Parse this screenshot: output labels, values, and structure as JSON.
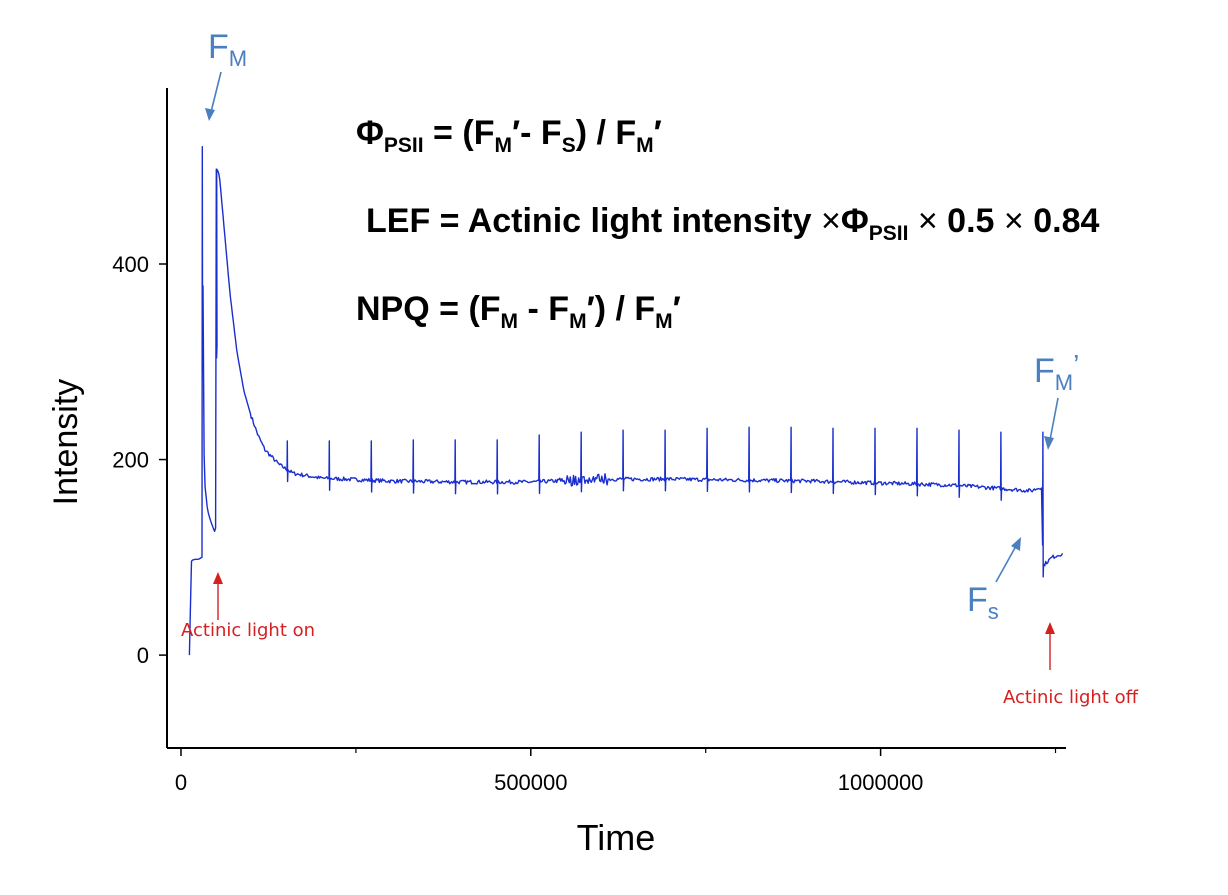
{
  "chart_data": {
    "type": "line",
    "title": "",
    "xlabel": "Time",
    "ylabel": "Intensity",
    "xlim": [
      -20000,
      1265000
    ],
    "ylim": [
      -95,
      580
    ],
    "xticks": [
      0,
      500000,
      1000000
    ],
    "xtick_labels": [
      "0",
      "500000",
      "1000000"
    ],
    "yticks": [
      0,
      200,
      400
    ],
    "ytick_labels": [
      "0",
      "200",
      "400"
    ],
    "line_color": "#1a2ed0",
    "series": [
      {
        "name": "Intensity",
        "x": [
          12000,
          13000,
          14000,
          16000,
          20000,
          25000,
          30000,
          31000,
          32000,
          34000,
          38000,
          42000,
          46000,
          49000,
          50000,
          51000,
          53000,
          55000,
          60000,
          70000,
          80000,
          90000,
          100000,
          110000,
          120000,
          140000,
          160000,
          200000,
          300000,
          400000,
          500000,
          600000,
          700000,
          800000,
          900000,
          1000000,
          1100000,
          1180000,
          1215000,
          1230000,
          1232000,
          1236000,
          1245000,
          1260000
        ],
        "y": [
          0,
          0,
          95,
          97,
          98,
          98,
          100,
          520,
          235,
          175,
          148,
          138,
          130,
          125,
          135,
          497,
          495,
          490,
          450,
          370,
          310,
          270,
          245,
          225,
          210,
          195,
          186,
          181,
          178,
          177,
          177,
          180,
          180,
          179,
          178,
          176,
          174,
          170,
          168,
          172,
          92,
          94,
          100,
          104
        ]
      }
    ],
    "saturating_pulses": {
      "x": [
        30500,
        50500,
        152000,
        212000,
        272000,
        332000,
        392000,
        452000,
        512000,
        572000,
        632000,
        692000,
        752000,
        812000,
        872000,
        932000,
        992000,
        1052000,
        1112000,
        1172000,
        1232000
      ],
      "peak": [
        520,
        497,
        219,
        219,
        219,
        220,
        220,
        220,
        225,
        228,
        230,
        230,
        232,
        233,
        233,
        232,
        232,
        232,
        230,
        228,
        228
      ]
    },
    "annotations": {
      "fm": {
        "main": "F",
        "sub": "M"
      },
      "fm_prime": {
        "main": "F",
        "sub": "M",
        "prime": "’"
      },
      "fs": {
        "main": "F",
        "sub": "s"
      },
      "actinic_on": "Actinic light on",
      "actinic_off": "Actinic light off"
    },
    "equations": {
      "phi": "Φ",
      "psii": "PSII",
      "eq_sign": " = ",
      "f": "F",
      "m": "M",
      "s": "S",
      "prime": "′",
      "minus": "- ",
      "open": "(",
      "close": ")",
      "slash": " / ",
      "lef": "LEF",
      "lef_text": " = Actinic light intensity ",
      "times": "×",
      "half": " 0.5 ",
      "factor": " 0.84",
      "npq": "NPQ"
    }
  }
}
